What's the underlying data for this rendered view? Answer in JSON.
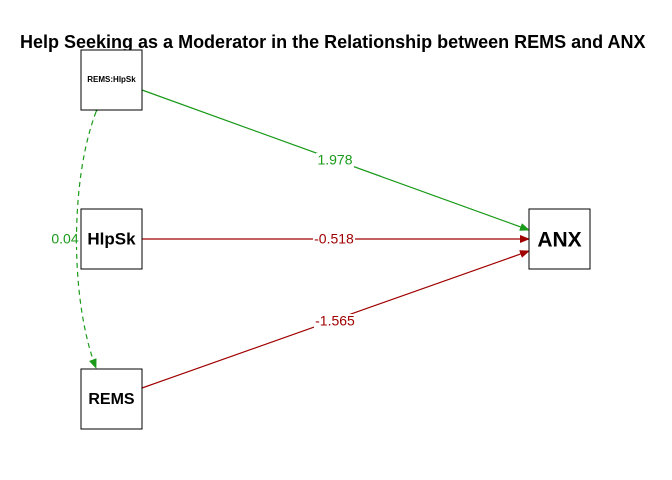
{
  "title": "Help Seeking as a Moderator in the Relationship between REMS and ANX",
  "colors": {
    "positive": "#1a9a1a",
    "negative": "#a00000"
  },
  "nodes": {
    "interaction": "REMS:HlpSk",
    "help_seeking": "HlpSk",
    "rems": "REMS",
    "anx": "ANX"
  },
  "paths": {
    "interaction_to_anx": "1.978",
    "help_seeking_to_anx": "-0.518",
    "rems_to_anx": "-1.565",
    "interaction_rems_covariance": "0.04"
  }
}
